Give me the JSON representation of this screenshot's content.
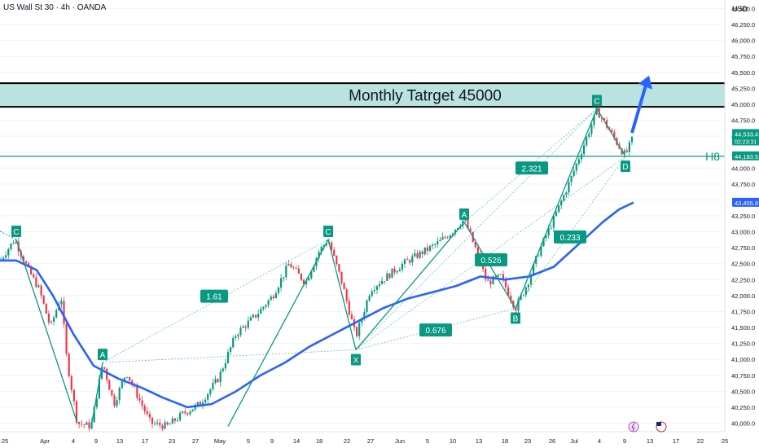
{
  "header": {
    "symbol_title": "US Wall St 30 · 4h · OANDA",
    "currency": "USD"
  },
  "colors": {
    "bull": "#089981",
    "bear": "#f23645",
    "ma": "#2962ff",
    "pattern": "#089981",
    "target_zone": "#b2dfdb",
    "arrow": "#2962ff"
  },
  "chart_data": {
    "type": "candlestick",
    "ylim": [
      39950,
      46700
    ],
    "y_ticks": [
      40000,
      40250,
      40500,
      40750,
      41000,
      41250,
      41500,
      41750,
      42000,
      42250,
      42500,
      42750,
      43000,
      43250,
      43500,
      43750,
      44000,
      44250,
      44500,
      44750,
      45000,
      45250,
      45500,
      45750,
      46000,
      46250,
      46500
    ],
    "y_tick_labels": [
      "40,000.0",
      "40,250.0",
      "40,500.0",
      "40,750.0",
      "41,000.0",
      "41,250.0",
      "41,500.0",
      "41,750.0",
      "42,000.0",
      "42,250.0",
      "42,500.0",
      "42,750.0",
      "43,000.0",
      "43,250.0",
      "43,500.0",
      "43,750.0",
      "44,000.0",
      "44,250.0",
      "44,500.0",
      "44,750.0",
      "45,000.0",
      "45,250.0",
      "45,500.0",
      "45,750.0",
      "46,000.0",
      "46,250.0",
      "46,500.0"
    ],
    "x_tick_labels": [
      "25",
      "Apr",
      "4",
      "9",
      "13",
      "17",
      "23",
      "27",
      "May",
      "5",
      "9",
      "14",
      "18",
      "22",
      "27",
      "Jun",
      "5",
      "10",
      "13",
      "18",
      "23",
      "26",
      "Jul",
      "4",
      "9",
      "13",
      "17",
      "22",
      "25"
    ],
    "price_path": [
      [
        0,
        42550
      ],
      [
        18,
        42880
      ],
      [
        35,
        42400
      ],
      [
        48,
        42100
      ],
      [
        62,
        41500
      ],
      [
        75,
        42000
      ],
      [
        82,
        41000
      ],
      [
        95,
        40000
      ],
      [
        112,
        39950
      ],
      [
        126,
        40950
      ],
      [
        140,
        40300
      ],
      [
        155,
        40800
      ],
      [
        170,
        40400
      ],
      [
        185,
        40000
      ],
      [
        205,
        39950
      ],
      [
        225,
        40150
      ],
      [
        245,
        40300
      ],
      [
        268,
        40700
      ],
      [
        290,
        41400
      ],
      [
        315,
        41700
      ],
      [
        335,
        42000
      ],
      [
        355,
        42500
      ],
      [
        375,
        42200
      ],
      [
        392,
        42700
      ],
      [
        403,
        42880
      ],
      [
        420,
        42200
      ],
      [
        437,
        41350
      ],
      [
        455,
        42100
      ],
      [
        475,
        42300
      ],
      [
        495,
        42500
      ],
      [
        515,
        42650
      ],
      [
        535,
        42800
      ],
      [
        555,
        43000
      ],
      [
        570,
        43200
      ],
      [
        585,
        42700
      ],
      [
        598,
        42200
      ],
      [
        615,
        42300
      ],
      [
        633,
        41800
      ],
      [
        648,
        42200
      ],
      [
        662,
        42700
      ],
      [
        680,
        43200
      ],
      [
        700,
        43800
      ],
      [
        715,
        44300
      ],
      [
        733,
        44900
      ],
      [
        748,
        44600
      ],
      [
        762,
        44300
      ],
      [
        768,
        44200
      ],
      [
        778,
        44500
      ]
    ],
    "moving_average": [
      [
        0,
        42550
      ],
      [
        20,
        42550
      ],
      [
        45,
        42400
      ],
      [
        65,
        42000
      ],
      [
        90,
        41400
      ],
      [
        115,
        40900
      ],
      [
        145,
        40700
      ],
      [
        175,
        40550
      ],
      [
        200,
        40400
      ],
      [
        230,
        40250
      ],
      [
        260,
        40300
      ],
      [
        290,
        40500
      ],
      [
        320,
        40750
      ],
      [
        350,
        40950
      ],
      [
        380,
        41200
      ],
      [
        410,
        41400
      ],
      [
        440,
        41600
      ],
      [
        470,
        41800
      ],
      [
        500,
        41950
      ],
      [
        530,
        42050
      ],
      [
        560,
        42150
      ],
      [
        590,
        42300
      ],
      [
        620,
        42250
      ],
      [
        650,
        42300
      ],
      [
        680,
        42450
      ],
      [
        710,
        42800
      ],
      [
        740,
        43150
      ],
      [
        760,
        43350
      ],
      [
        778,
        43460
      ]
    ],
    "target_zone": {
      "label": "Monthly Tatrget 45000",
      "from": 44960,
      "to": 45330
    },
    "h8_level": {
      "label": "H8",
      "value": 44183.5
    },
    "price_labels": [
      {
        "value": 44533.4,
        "text": "44,533.4",
        "sub": "02:23:31",
        "color": "#089981"
      },
      {
        "value": 44183.5,
        "text": "44,183.5",
        "sub": "",
        "color": "#089981"
      },
      {
        "value": 43455.8,
        "text": "43,455.8",
        "sub": "",
        "color": "#2962ff"
      }
    ],
    "pattern_points": [
      {
        "label": "C",
        "x": 20,
        "y": 42880,
        "pos": "above"
      },
      {
        "label": "A",
        "x": 126,
        "y": 40950,
        "pos": "above"
      },
      {
        "label": "C",
        "x": 403,
        "y": 42880,
        "pos": "above"
      },
      {
        "label": "X",
        "x": 437,
        "y": 41150,
        "pos": "below"
      },
      {
        "label": "A",
        "x": 570,
        "y": 43150,
        "pos": "above"
      },
      {
        "label": "B",
        "x": 633,
        "y": 41800,
        "pos": "below"
      },
      {
        "label": "C",
        "x": 733,
        "y": 44930,
        "pos": "above"
      },
      {
        "label": "D",
        "x": 768,
        "y": 44180,
        "pos": "below"
      }
    ],
    "ratio_labels": [
      {
        "text": "1.61",
        "x": 263,
        "y": 41990
      },
      {
        "text": "0.526",
        "x": 603,
        "y": 42560
      },
      {
        "text": "0.676",
        "x": 535,
        "y": 41460
      },
      {
        "text": "2.321",
        "x": 653,
        "y": 44000
      },
      {
        "text": "0.233",
        "x": 700,
        "y": 42920
      }
    ],
    "target_arrow": {
      "from": [
        776,
        44550
      ],
      "to": [
        797,
        45450
      ]
    }
  }
}
